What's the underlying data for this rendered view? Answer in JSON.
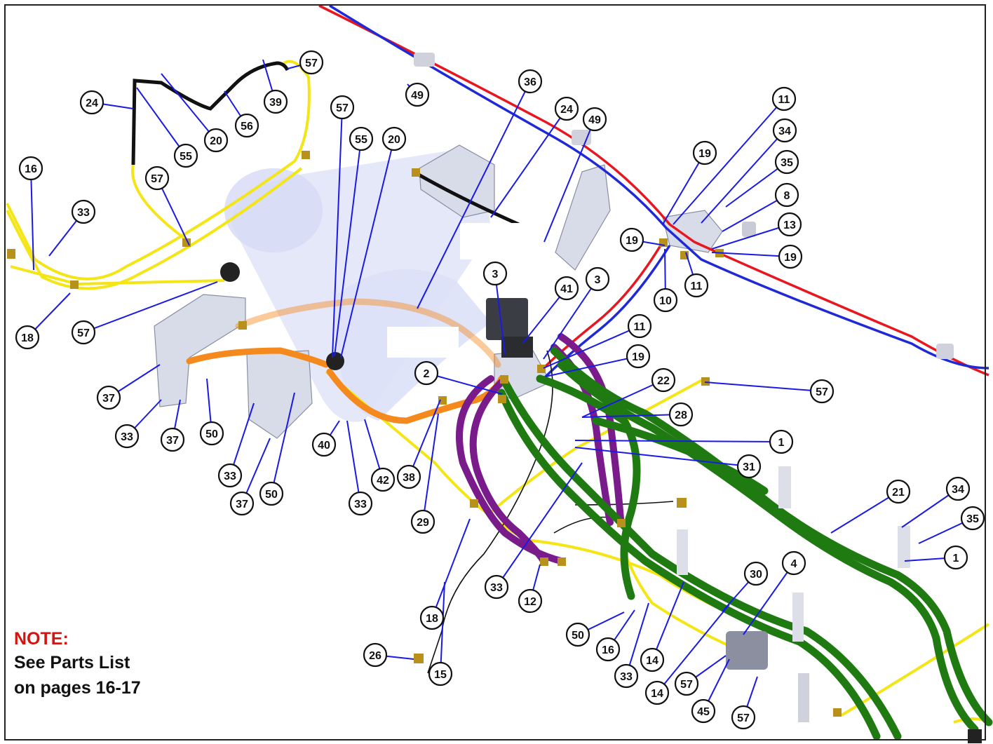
{
  "note": {
    "title": "NOTE:",
    "line1": "See Parts List",
    "line2": "on pages 16-17"
  },
  "colors": {
    "leader": "#1a1ae6",
    "note_title": "#d4150f",
    "red_line": "#e8171f",
    "blue_line": "#1f2ad6",
    "yellow_line": "#f4e616",
    "black_line": "#111111",
    "orange_hose": "#f48a1e",
    "purple_hose": "#7a1b8c",
    "green_hose": "#1f7a12",
    "tank": "#dfe3f7",
    "bracket": "#d8dbe8"
  },
  "callouts": [
    {
      "id": "c24a",
      "label": "24"
    },
    {
      "id": "c20a",
      "label": "20"
    },
    {
      "id": "c56",
      "label": "56"
    },
    {
      "id": "c39",
      "label": "39"
    },
    {
      "id": "c57a",
      "label": "57"
    },
    {
      "id": "c16a",
      "label": "16"
    },
    {
      "id": "c55a",
      "label": "55"
    },
    {
      "id": "c57b",
      "label": "57"
    },
    {
      "id": "c33a",
      "label": "33"
    },
    {
      "id": "c18a",
      "label": "18"
    },
    {
      "id": "c57c",
      "label": "57"
    },
    {
      "id": "c57d",
      "label": "57"
    },
    {
      "id": "c55b",
      "label": "55"
    },
    {
      "id": "c20b",
      "label": "20"
    },
    {
      "id": "c49a",
      "label": "49"
    },
    {
      "id": "c36",
      "label": "36"
    },
    {
      "id": "c24b",
      "label": "24"
    },
    {
      "id": "c49b",
      "label": "49"
    },
    {
      "id": "c11a",
      "label": "11"
    },
    {
      "id": "c34a",
      "label": "34"
    },
    {
      "id": "c19a",
      "label": "19"
    },
    {
      "id": "c35a",
      "label": "35"
    },
    {
      "id": "c8",
      "label": "8"
    },
    {
      "id": "c13",
      "label": "13"
    },
    {
      "id": "c19b",
      "label": "19"
    },
    {
      "id": "c19c",
      "label": "19"
    },
    {
      "id": "c10",
      "label": "10"
    },
    {
      "id": "c11b",
      "label": "11"
    },
    {
      "id": "c3a",
      "label": "3"
    },
    {
      "id": "c41",
      "label": "41"
    },
    {
      "id": "c3b",
      "label": "3"
    },
    {
      "id": "c11c",
      "label": "11"
    },
    {
      "id": "c19d",
      "label": "19"
    },
    {
      "id": "c2",
      "label": "2"
    },
    {
      "id": "c22",
      "label": "22"
    },
    {
      "id": "c57e",
      "label": "57"
    },
    {
      "id": "c28",
      "label": "28"
    },
    {
      "id": "c1a",
      "label": "1"
    },
    {
      "id": "c31",
      "label": "31"
    },
    {
      "id": "c37a",
      "label": "37"
    },
    {
      "id": "c33b",
      "label": "33"
    },
    {
      "id": "c37b",
      "label": "37"
    },
    {
      "id": "c50a",
      "label": "50"
    },
    {
      "id": "c40",
      "label": "40"
    },
    {
      "id": "c33c",
      "label": "33"
    },
    {
      "id": "c37c",
      "label": "37"
    },
    {
      "id": "c50b",
      "label": "50"
    },
    {
      "id": "c33d",
      "label": "33"
    },
    {
      "id": "c42",
      "label": "42"
    },
    {
      "id": "c38",
      "label": "38"
    },
    {
      "id": "c29",
      "label": "29"
    },
    {
      "id": "c21",
      "label": "21"
    },
    {
      "id": "c34b",
      "label": "34"
    },
    {
      "id": "c35b",
      "label": "35"
    },
    {
      "id": "c1b",
      "label": "1"
    },
    {
      "id": "c18b",
      "label": "18"
    },
    {
      "id": "c33e",
      "label": "33"
    },
    {
      "id": "c12",
      "label": "12"
    },
    {
      "id": "c30",
      "label": "30"
    },
    {
      "id": "c4",
      "label": "4"
    },
    {
      "id": "c50c",
      "label": "50"
    },
    {
      "id": "c16b",
      "label": "16"
    },
    {
      "id": "c33f",
      "label": "33"
    },
    {
      "id": "c14a",
      "label": "14"
    },
    {
      "id": "c14b",
      "label": "14"
    },
    {
      "id": "c57f",
      "label": "57"
    },
    {
      "id": "c45",
      "label": "45"
    },
    {
      "id": "c57g",
      "label": "57"
    },
    {
      "id": "c26",
      "label": "26"
    },
    {
      "id": "c15",
      "label": "15"
    }
  ]
}
